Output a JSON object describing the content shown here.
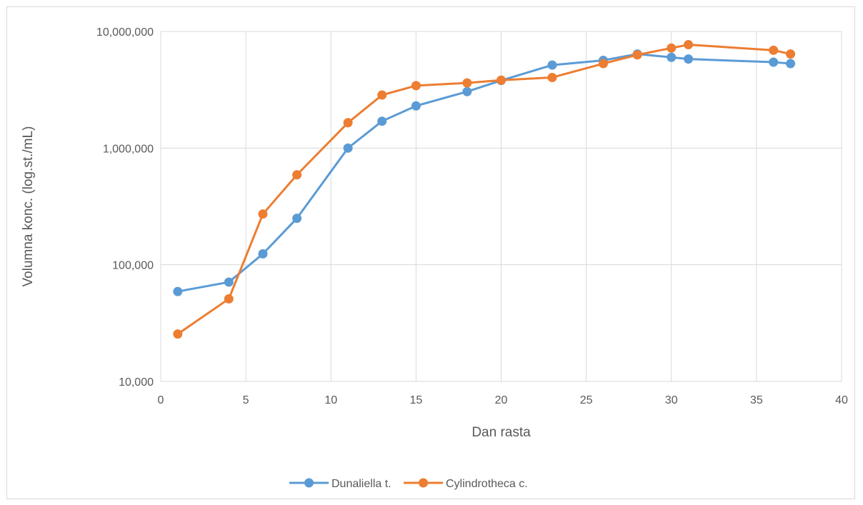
{
  "chart_data": {
    "type": "line",
    "title": "",
    "xlabel": "Dan rasta",
    "ylabel": "Volumna konc. (log.st./mL)",
    "xlim": [
      0,
      40
    ],
    "ylim": [
      10000,
      10000000
    ],
    "yscale": "log",
    "x_ticks": [
      "0",
      "5",
      "10",
      "15",
      "20",
      "25",
      "30",
      "35",
      "40"
    ],
    "y_ticks": [
      "10,000",
      "100,000",
      "1,000,000",
      "10,000,000"
    ],
    "grid": true,
    "legend_position": "bottom",
    "series": [
      {
        "name": "Dunaliella t.",
        "color": "#5b9bd5",
        "x": [
          1,
          4,
          6,
          8,
          11,
          13,
          15,
          18,
          20,
          23,
          26,
          28,
          30,
          31,
          36,
          37
        ],
        "values": [
          59000,
          71000,
          124000,
          250000,
          1000000,
          1700000,
          2300000,
          3050000,
          3800000,
          5150000,
          5650000,
          6400000,
          6000000,
          5800000,
          5450000,
          5300000
        ]
      },
      {
        "name": "Cylindrotheca c.",
        "color": "#ed7d31",
        "x": [
          1,
          4,
          6,
          8,
          11,
          13,
          15,
          18,
          20,
          23,
          26,
          28,
          30,
          31,
          36,
          37
        ],
        "values": [
          25500,
          51000,
          272000,
          590000,
          1650000,
          2850000,
          3430000,
          3620000,
          3820000,
          4030000,
          5300000,
          6300000,
          7200000,
          7700000,
          6900000,
          6400000
        ]
      }
    ]
  }
}
